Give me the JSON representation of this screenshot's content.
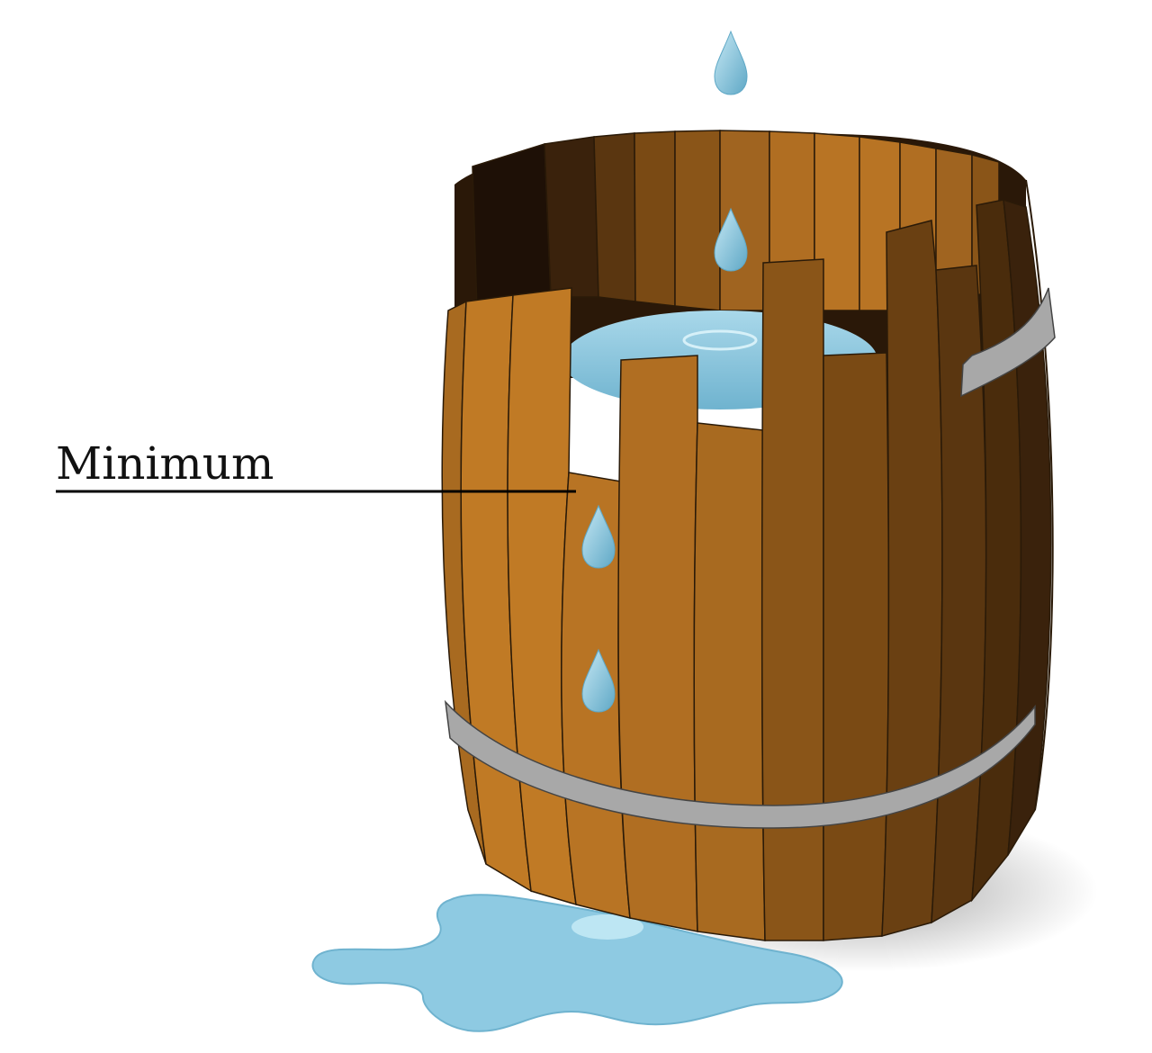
{
  "annotation": {
    "label": "Minimum"
  },
  "colors": {
    "wood_light": "#c07a25",
    "wood_mid": "#a86a20",
    "wood_dark": "#7a4a14",
    "wood_darker": "#5a3610",
    "wood_inside": "#2a1808",
    "water": "#8ec9df",
    "water_light": "#b9e0ee",
    "hoop": "#a8a8a8",
    "outline": "#2a1a08"
  }
}
